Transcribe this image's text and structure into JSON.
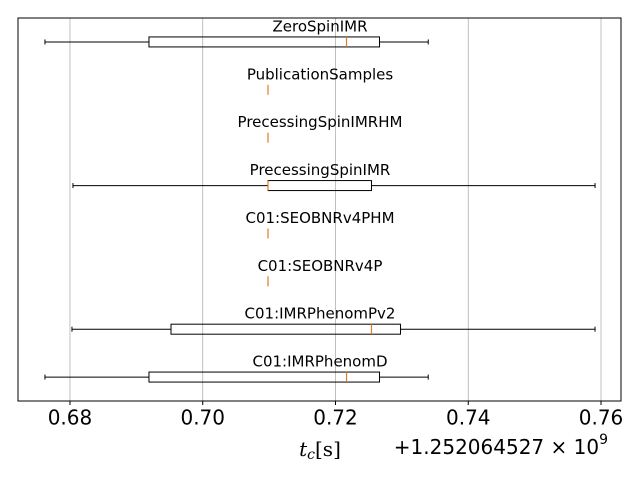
{
  "chart_data": {
    "type": "boxplot",
    "orientation": "horizontal",
    "xlim": [
      0.67217,
      0.76301
    ],
    "xticks": [
      0.68,
      {
        "value": 0.7,
        "label": "0.70"
      },
      0.72,
      0.74,
      0.76
    ],
    "grid": true,
    "box_color": "#000000",
    "median_color": "#e07b22",
    "xlabel": {
      "base": "t",
      "sub": "c",
      "unit": "[s]"
    },
    "offset_text": "+1.252064527 × 10",
    "offset_exponent": "9",
    "boxes": [
      {
        "name": "ZeroSpinIMR",
        "whislo": 0.67623,
        "q1": 0.6919,
        "med": 0.72166,
        "q3": 0.72663,
        "whishi": 0.73397
      },
      {
        "name": "PublicationSamples",
        "whislo": 0.70983,
        "q1": 0.70983,
        "med": 0.70983,
        "q3": 0.70983,
        "whishi": 0.70983
      },
      {
        "name": "PrecessingSpinIMRHM",
        "whislo": 0.70983,
        "q1": 0.70983,
        "med": 0.70983,
        "q3": 0.70983,
        "whishi": 0.70983
      },
      {
        "name": "PrecessingSpinIMR",
        "whislo": 0.68045,
        "q1": 0.70983,
        "med": 0.70983,
        "q3": 0.72542,
        "whishi": 0.7591
      },
      {
        "name": "C01:SEOBNRv4PHM",
        "whislo": 0.70983,
        "q1": 0.70983,
        "med": 0.70983,
        "q3": 0.70983,
        "whishi": 0.70983
      },
      {
        "name": "C01:SEOBNRv4P",
        "whislo": 0.70983,
        "q1": 0.70983,
        "med": 0.70983,
        "q3": 0.70983,
        "whishi": 0.70983
      },
      {
        "name": "C01:IMRPhenomPv2",
        "whislo": 0.6803,
        "q1": 0.69522,
        "med": 0.72542,
        "q3": 0.72979,
        "whishi": 0.7591
      },
      {
        "name": "C01:IMRPhenomD",
        "whislo": 0.67623,
        "q1": 0.6919,
        "med": 0.72166,
        "q3": 0.72663,
        "whishi": 0.73397
      }
    ]
  }
}
